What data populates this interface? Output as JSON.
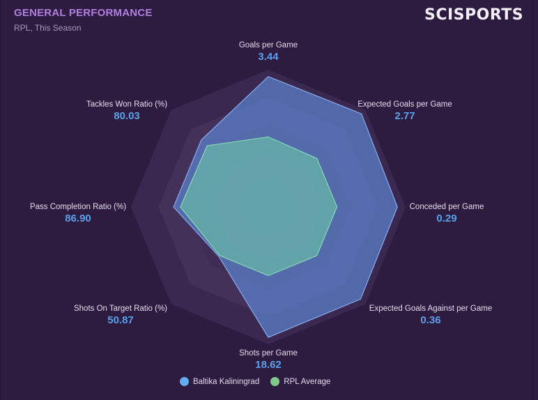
{
  "header": {
    "title": "GENERAL PERFORMANCE",
    "subtitle": "RPL, This Season",
    "logo": "SCISPORTS"
  },
  "colors": {
    "background": "#2d1c40",
    "team": "#5e8fd6",
    "average": "#6cc7a0",
    "value": "#5aa0ea",
    "title": "#b07fe0"
  },
  "chart_data": {
    "type": "radar",
    "title": "GENERAL PERFORMANCE",
    "subtitle": "RPL, This Season",
    "rings": 5,
    "axes": [
      {
        "label": "Goals per Game",
        "value": "3.44"
      },
      {
        "label": "Expected Goals per Game",
        "value": "2.77"
      },
      {
        "label": "Conceded per Game",
        "value": "0.29"
      },
      {
        "label": "Expected Goals Against per Game",
        "value": "0.36"
      },
      {
        "label": "Shots per Game",
        "value": "18.62"
      },
      {
        "label": "Shots On Target Ratio (%)",
        "value": "50.87"
      },
      {
        "label": "Pass Completion Ratio (%)",
        "value": "86.90"
      },
      {
        "label": "Tackles Won Ratio (%)",
        "value": "80.03"
      }
    ],
    "series": [
      {
        "name": "Baltika Kaliningrad",
        "color": "#5e8fd6",
        "normalized": [
          0.95,
          0.96,
          0.94,
          0.95,
          0.95,
          0.51,
          0.69,
          0.69
        ]
      },
      {
        "name": "RPL Average",
        "color": "#6cc7a0",
        "normalized": [
          0.51,
          0.5,
          0.5,
          0.5,
          0.5,
          0.5,
          0.64,
          0.63
        ]
      }
    ],
    "legend": "bottom"
  }
}
